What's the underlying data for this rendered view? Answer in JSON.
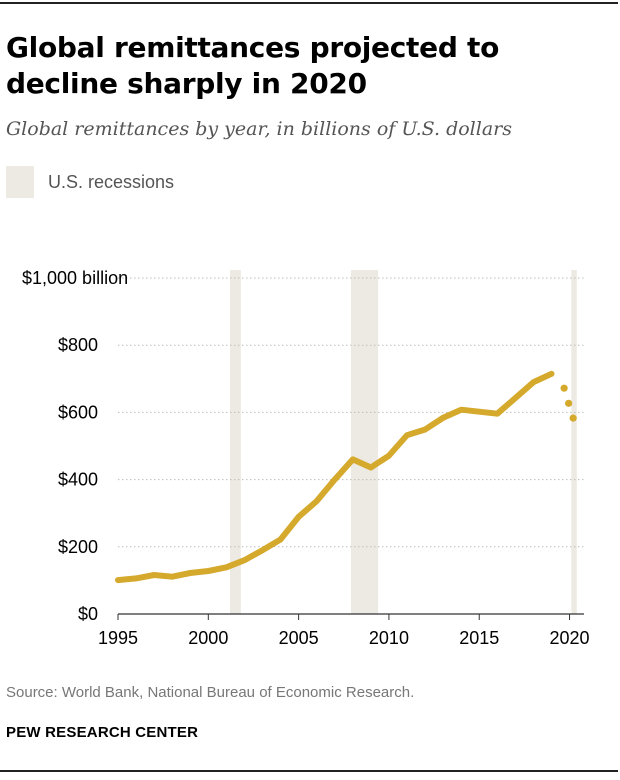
{
  "chart_data": {
    "type": "line",
    "title": "Global remittances projected to decline sharply in 2020",
    "subtitle": "Global remittances by year, in billions of U.S. dollars",
    "legend": {
      "label": "U.S. recessions",
      "color": "#ede9e3",
      "placement": "top-left"
    },
    "recessions": [
      {
        "start": 2001.2,
        "end": 2001.8
      },
      {
        "start": 2007.9,
        "end": 2009.4
      },
      {
        "start": 2020.1,
        "end": 2020.4
      }
    ],
    "series": [
      {
        "color": "#d4a92c",
        "style": "solid",
        "points": [
          [
            1995,
            101
          ],
          [
            1996,
            106
          ],
          [
            1997,
            116
          ],
          [
            1998,
            111
          ],
          [
            1999,
            122
          ],
          [
            2000,
            128
          ],
          [
            2001,
            139
          ],
          [
            2002,
            160
          ],
          [
            2003,
            190
          ],
          [
            2004,
            222
          ],
          [
            2005,
            289
          ],
          [
            2006,
            336
          ],
          [
            2007,
            400
          ],
          [
            2008,
            460
          ],
          [
            2009,
            436
          ],
          [
            2010,
            471
          ],
          [
            2011,
            532
          ],
          [
            2012,
            549
          ],
          [
            2013,
            584
          ],
          [
            2014,
            608
          ],
          [
            2015,
            602
          ],
          [
            2016,
            596
          ],
          [
            2017,
            643
          ],
          [
            2018,
            690
          ],
          [
            2019,
            715
          ]
        ]
      },
      {
        "color": "#d4a92c",
        "style": "dotted",
        "points": [
          [
            2019.7,
            672
          ],
          [
            2019.95,
            627
          ],
          [
            2020.2,
            583
          ]
        ]
      }
    ],
    "x_ticks": [
      "1995",
      "2000",
      "2005",
      "2010",
      "2015",
      "2020"
    ],
    "y_ticks": [
      {
        "value": 0,
        "label": "$0"
      },
      {
        "value": 200,
        "label": "$200"
      },
      {
        "value": 400,
        "label": "$400"
      },
      {
        "value": 600,
        "label": "$600"
      },
      {
        "value": 800,
        "label": "$800"
      },
      {
        "value": 1000,
        "label": "$1,000 billion"
      }
    ],
    "xlim": [
      1995,
      2020.8
    ],
    "ylim": [
      0,
      1000
    ],
    "grid": true
  },
  "source": "Source: World Bank, National Bureau of Economic Research.",
  "brand": "PEW RESEARCH CENTER"
}
